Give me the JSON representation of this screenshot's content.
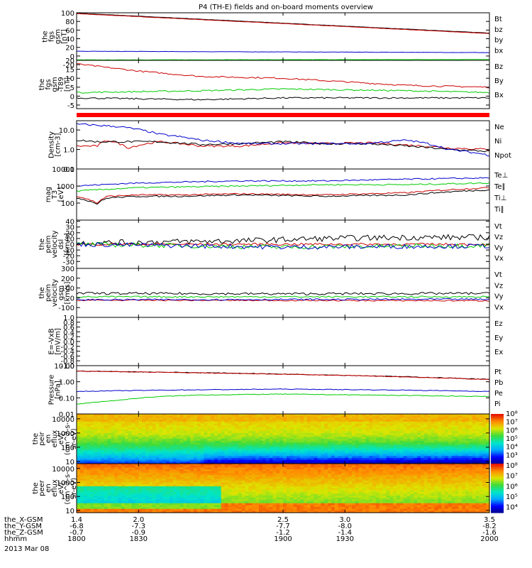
{
  "title": "P4 (TH-E) fields and on-board moments overview",
  "chart_data": [
    {
      "type": "line",
      "id": "fgs_gsm",
      "ylabel": [
        "the",
        "fgs",
        "gsm",
        "[nT]"
      ],
      "ylim": [
        -10,
        100
      ],
      "ticks": [
        100,
        80,
        60,
        40,
        20,
        0,
        -20
      ],
      "tick_labels": [
        "100",
        "80",
        "60",
        "40",
        "20",
        "0",
        "-20"
      ],
      "series": [
        {
          "name": "Bt",
          "color": "#000000",
          "x": [
            1800,
            2000
          ],
          "values": [
            99,
            53
          ],
          "noise": 0.3
        },
        {
          "name": "bz",
          "color": "#cc0000",
          "x": [
            1800,
            2000
          ],
          "values": [
            98,
            52
          ],
          "noise": 0.3
        },
        {
          "name": "by",
          "color": "#00cc00",
          "x": [
            1800,
            2000
          ],
          "values": [
            -9,
            -8
          ],
          "noise": 0.3
        },
        {
          "name": "bx",
          "color": "#0000cc",
          "x": [
            1800,
            2000
          ],
          "values": [
            11,
            8
          ],
          "noise": 0.3
        }
      ]
    },
    {
      "type": "line",
      "id": "fgs_gsm_minus_t89",
      "ylabel": [
        "the",
        "fgs",
        "gsm",
        "-T89",
        "[nT]"
      ],
      "ylim": [
        -7,
        20
      ],
      "ticks": [
        20,
        15,
        10,
        5,
        0,
        -5
      ],
      "tick_labels": [
        "20",
        "15",
        "10",
        "5",
        "0",
        "-5"
      ],
      "series": [
        {
          "name": "Bz",
          "color": "#cc0000",
          "x": [
            1800,
            1830,
            1860,
            1900,
            1930,
            1960,
            2000
          ],
          "values": [
            18,
            14,
            11,
            10,
            8,
            6,
            5
          ],
          "noise": 0.4
        },
        {
          "name": "By",
          "color": "#00cc00",
          "x": [
            1800,
            1860,
            1900,
            1960,
            2000
          ],
          "values": [
            2,
            3,
            4,
            3,
            2
          ],
          "noise": 0.4
        },
        {
          "name": "Bx",
          "color": "#000000",
          "x": [
            1800,
            1860,
            1900,
            1960,
            2000
          ],
          "values": [
            -1,
            -2,
            -1,
            -1,
            -1
          ],
          "noise": 0.4
        }
      ]
    },
    {
      "type": "line",
      "id": "density",
      "ylabel": [
        "Density",
        "[cm-3]"
      ],
      "log": true,
      "ylim": [
        0.1,
        30
      ],
      "ticks": [
        10,
        1,
        0.1
      ],
      "tick_labels": [
        "10.0",
        "1.0",
        "0.1"
      ],
      "series": [
        {
          "name": "Ne",
          "color": "#cc0000",
          "x": [
            1800,
            1810,
            1815,
            1825,
            1840,
            1860,
            1880,
            1900,
            1920,
            1940,
            1960,
            1980,
            2000
          ],
          "values": [
            1.5,
            1.5,
            3,
            1.2,
            2.5,
            1.5,
            1.5,
            2.2,
            2,
            2.2,
            1.7,
            1.2,
            1
          ],
          "noise": 0.05
        },
        {
          "name": "Ni",
          "color": "#000000",
          "x": [
            1800,
            1810,
            1840,
            1860,
            1880,
            1900,
            1920,
            1940,
            1960,
            1980,
            2000
          ],
          "values": [
            3,
            2.5,
            2.5,
            1.8,
            2,
            2.5,
            2,
            2,
            1.5,
            1,
            0.8
          ],
          "noise": 0.05
        },
        {
          "name": "Npot",
          "color": "#0000cc",
          "x": [
            1800,
            1820,
            1840,
            1860,
            1880,
            1900,
            1920,
            1940,
            1960,
            1980,
            2000
          ],
          "values": [
            20,
            15,
            6,
            3,
            2,
            2,
            2,
            2,
            3,
            1,
            0.5
          ],
          "noise": 0.05
        }
      ]
    },
    {
      "type": "line",
      "id": "temperature",
      "ylabel": [
        "mag",
        "T3",
        "[eV]"
      ],
      "log": true,
      "ylim": [
        10,
        10000
      ],
      "ticks": [
        10000,
        1000,
        100
      ],
      "tick_labels": [
        "10000",
        "1000",
        "100"
      ],
      "series": [
        {
          "name": "Te⊥",
          "color": "#cc0000",
          "x": [
            1800,
            1810,
            1815,
            1830,
            1850,
            1880,
            1920,
            1960,
            2000
          ],
          "values": [
            250,
            100,
            250,
            300,
            300,
            350,
            300,
            400,
            800
          ],
          "noise": 0.04
        },
        {
          "name": "Te∥",
          "color": "#000000",
          "x": [
            1800,
            1810,
            1815,
            1830,
            1850,
            1880,
            1920,
            1960,
            2000
          ],
          "values": [
            200,
            90,
            200,
            250,
            250,
            300,
            250,
            300,
            600
          ],
          "noise": 0.04
        },
        {
          "name": "Ti⊥",
          "color": "#0000cc",
          "x": [
            1800,
            1830,
            1880,
            1920,
            1960,
            2000
          ],
          "values": [
            1000,
            1500,
            2000,
            2000,
            2500,
            3000
          ],
          "noise": 0.04
        },
        {
          "name": "Ti∥",
          "color": "#00cc00",
          "x": [
            1800,
            1830,
            1880,
            1920,
            1960,
            2000
          ],
          "values": [
            500,
            800,
            1000,
            1200,
            1200,
            1500
          ],
          "noise": 0.04
        }
      ]
    },
    {
      "type": "line",
      "id": "peim_velocity_dsl",
      "ylabel": [
        "the",
        "peim",
        "velocity",
        "dsl",
        "[km/s]"
      ],
      "ylim": [
        -42,
        42
      ],
      "ticks": [
        40,
        30,
        20,
        10,
        0,
        -10,
        -20,
        -30
      ],
      "tick_labels": [
        "40",
        "30",
        "20",
        "10",
        "0",
        "-10",
        "-20",
        "-30"
      ],
      "series": [
        {
          "name": "Vt",
          "color": "#000000",
          "x": [
            1800,
            1880,
            1920,
            1960,
            2000
          ],
          "values": [
            2,
            6,
            10,
            12,
            12
          ],
          "noise": 5
        },
        {
          "name": "Vz",
          "color": "#cc0000",
          "x": [
            1800,
            2000
          ],
          "values": [
            0,
            0
          ],
          "noise": 2
        },
        {
          "name": "Vy",
          "color": "#00cc00",
          "x": [
            1800,
            1900,
            2000
          ],
          "values": [
            0,
            -5,
            -2
          ],
          "noise": 4
        },
        {
          "name": "Vx",
          "color": "#0000cc",
          "x": [
            1800,
            1900,
            2000
          ],
          "values": [
            0,
            -5,
            -3
          ],
          "noise": 4
        }
      ]
    },
    {
      "type": "line",
      "id": "peim_velocity_gsm",
      "ylabel": [
        "the",
        "peim",
        "velocity",
        "gsm",
        "[km/s]"
      ],
      "ylim": [
        -200,
        300
      ],
      "ticks": [
        300,
        200,
        100,
        0,
        -100
      ],
      "tick_labels": [
        "300",
        "200",
        "100",
        "0",
        "-100"
      ],
      "series": [
        {
          "name": "Vt",
          "color": "#000000",
          "x": [
            1800,
            1900,
            2000
          ],
          "values": [
            45,
            40,
            45
          ],
          "noise": 12
        },
        {
          "name": "Vz",
          "color": "#cc0000",
          "x": [
            1800,
            2000
          ],
          "values": [
            -25,
            -30
          ],
          "noise": 6
        },
        {
          "name": "Vy",
          "color": "#00cc00",
          "x": [
            1800,
            2000
          ],
          "values": [
            10,
            10
          ],
          "noise": 8
        },
        {
          "name": "Vx",
          "color": "#0000cc",
          "x": [
            1800,
            2000
          ],
          "values": [
            -20,
            -15
          ],
          "noise": 8
        }
      ]
    },
    {
      "type": "line",
      "id": "e_vxb",
      "ylabel": [
        "E=-VxB",
        "[mV/m]"
      ],
      "ylim": [
        -1,
        1
      ],
      "ticks": [
        1,
        0.8,
        0.6,
        0.4,
        0.2,
        0,
        -0.2,
        -0.4,
        -0.6,
        -0.8,
        -1
      ],
      "tick_labels": [
        "1.0",
        "0.8",
        "0.6",
        "0.4",
        "0.2",
        "0.0",
        "-0.2",
        "-0.4",
        "-0.6",
        "-0.8",
        "-1.0"
      ],
      "series": [
        {
          "name": "Ez",
          "color": "#cc0000"
        },
        {
          "name": "Ey",
          "color": "#00cc00"
        },
        {
          "name": "Ex",
          "color": "#0000cc"
        }
      ]
    },
    {
      "type": "line",
      "id": "pressure",
      "ylabel": [
        "Pressure",
        "[nPa]"
      ],
      "log": true,
      "ylim": [
        0.01,
        10
      ],
      "ticks": [
        10,
        1,
        0.1,
        0.01
      ],
      "tick_labels": [
        "10.00",
        "1.00",
        "0.10",
        "0.01"
      ],
      "series": [
        {
          "name": "Pt",
          "color": "#000000",
          "x": [
            1800,
            2000
          ],
          "values": [
            4.6,
            1.4
          ],
          "noise": 0.02
        },
        {
          "name": "Pb",
          "color": "#cc0000",
          "x": [
            1800,
            2000
          ],
          "values": [
            4.5,
            1.35
          ],
          "noise": 0.02
        },
        {
          "name": "Pe",
          "color": "#00cc00",
          "x": [
            1800,
            1820,
            1840,
            1860,
            1900,
            1940,
            2000
          ],
          "values": [
            0.04,
            0.07,
            0.12,
            0.15,
            0.17,
            0.15,
            0.12
          ],
          "noise": 0.02
        },
        {
          "name": "Pi",
          "color": "#0000cc",
          "x": [
            1800,
            1840,
            1900,
            1960,
            2000
          ],
          "values": [
            0.25,
            0.3,
            0.35,
            0.3,
            0.25
          ],
          "noise": 0.02
        }
      ]
    },
    {
      "type": "heatmap",
      "id": "peir_en_eflux",
      "ylabel": [
        "the",
        "peir",
        "en",
        "eflux",
        "eV/",
        "(cm^2-s-",
        "sr-eV)"
      ],
      "log": true,
      "ylim": [
        7,
        22000
      ],
      "ticks": [
        10000,
        1000,
        100,
        10
      ],
      "tick_labels": [
        "10000",
        "1000",
        "100",
        "10"
      ],
      "colorbar": {
        "ticks": [
          3,
          4,
          5,
          6,
          7,
          8
        ],
        "tick_labels": [
          "10³",
          "10⁴",
          "10⁵",
          "10⁶",
          "10⁷",
          "10⁸"
        ],
        "range": [
          2,
          8
        ]
      }
    },
    {
      "type": "heatmap",
      "id": "peer_en_eflux",
      "ylabel": [
        "the",
        "peer",
        "en",
        "eflux",
        "eV/",
        "(cm^2-s-",
        "sr-eV)"
      ],
      "log": true,
      "ylim": [
        7,
        22000
      ],
      "ticks": [
        10000,
        1000,
        100,
        10
      ],
      "tick_labels": [
        "10000",
        "1000",
        "100",
        "10"
      ],
      "colorbar": {
        "ticks": [
          4,
          5,
          6,
          7,
          8
        ],
        "tick_labels": [
          "10⁴",
          "10⁵",
          "10⁶",
          "10⁷",
          "10⁸"
        ],
        "range": [
          3.5,
          8.2
        ]
      }
    }
  ],
  "x_axis": {
    "range": [
      1800,
      2000
    ],
    "ticks": [
      1800,
      1830,
      1900,
      1930,
      2000
    ],
    "tick_labels": [
      "1800",
      "1830",
      "1900",
      "1930",
      "2000"
    ],
    "rows": [
      {
        "label": "the_X-GSM",
        "values": [
          "1.4",
          "2.0",
          "2.5",
          "3.0",
          "3.5"
        ]
      },
      {
        "label": "the_Y-GSM",
        "values": [
          "-6.8",
          "-7.3",
          "-7.7",
          "-8.0",
          "-8.2"
        ]
      },
      {
        "label": "the_Z-GSM",
        "values": [
          "-0.7",
          "-0.9",
          "-1.2",
          "-1.4",
          "-1.6"
        ]
      },
      {
        "label": "hhmm",
        "values": []
      }
    ],
    "date": "2013 Mar 08"
  }
}
